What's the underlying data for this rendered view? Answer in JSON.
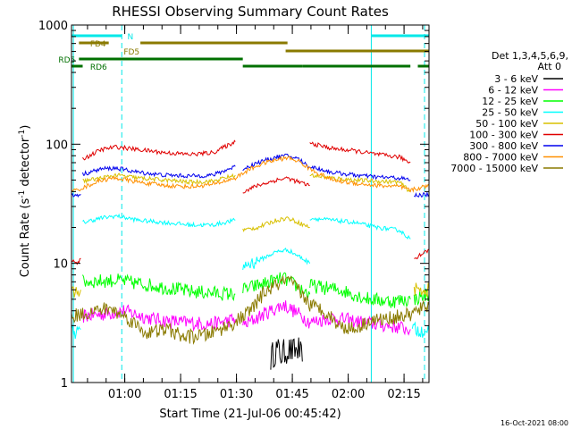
{
  "chart_data": {
    "type": "line",
    "title": "RHESSI Observing Summary Count Rates",
    "xlabel": "Start Time (21-Jul-06 00:45:42)",
    "ylabel_main": "Count Rate (s",
    "ylabel_sup1": "-1",
    "ylabel_mid": " detector",
    "ylabel_sup2": "-1",
    "ylabel_end": ")",
    "y_scale": "log",
    "ylim": [
      1,
      1000
    ],
    "xlim_minutes": [
      0,
      96
    ],
    "x_ticks": [
      {
        "label": "01:00",
        "t": 14.3
      },
      {
        "label": "01:15",
        "t": 29.3
      },
      {
        "label": "01:30",
        "t": 44.3
      },
      {
        "label": "01:45",
        "t": 59.3
      },
      {
        "label": "02:00",
        "t": 74.3
      },
      {
        "label": "02:15",
        "t": 89.3
      }
    ],
    "y_ticks": [
      {
        "label": "1",
        "v": 1
      },
      {
        "label": "10",
        "v": 10
      },
      {
        "label": "100",
        "v": 100
      },
      {
        "label": "1000",
        "v": 1000
      }
    ],
    "legend_header": [
      "Det 1,3,4,5,6,9,",
      "Att 0"
    ],
    "legend_position": "top-right",
    "footer_date": "16-Oct-2021 08:00",
    "vlines_solid": [
      0.5,
      80.5
    ],
    "vlines_dashed": [
      13.5,
      94.8
    ],
    "flags": [
      {
        "name": "N",
        "color": "#00e8e8",
        "row": 0,
        "segments": [
          [
            0,
            13.5
          ],
          [
            80.5,
            96
          ]
        ]
      },
      {
        "name": "FD4",
        "color": "#8a7a00",
        "row": 1,
        "segments": [
          [
            2,
            10
          ],
          [
            18.5,
            58
          ]
        ]
      },
      {
        "name": "FD5",
        "color": "#8a7a00",
        "row": 2,
        "segments": [
          [
            57.5,
            96
          ]
        ]
      },
      {
        "name": "RD5",
        "color": "#007000",
        "row": 3,
        "segments": [
          [
            2,
            46
          ]
        ]
      },
      {
        "name": "RD6",
        "color": "#007000",
        "row": 4,
        "segments": [
          [
            0,
            3
          ],
          [
            46,
            62
          ],
          [
            62,
            91
          ],
          [
            93,
            96
          ]
        ]
      }
    ],
    "flag_labels": [
      {
        "text": "N",
        "color": "#00e8e8",
        "t": 15,
        "row": 0
      },
      {
        "text": "FD4",
        "color": "#8a7a00",
        "t": 5,
        "row": 1
      },
      {
        "text": "FD5",
        "color": "#8a7a00",
        "t": 14,
        "row": 2
      },
      {
        "text": "RD5",
        "color": "#007000",
        "t": -3.5,
        "row": 3
      },
      {
        "text": "RD6",
        "color": "#007000",
        "t": 5,
        "row": 4
      }
    ],
    "series": [
      {
        "name": "3 - 6 keV",
        "color": "#000000",
        "segments": [
          [
            [
              53.5,
              1.6
            ],
            [
              55,
              1.9
            ],
            [
              56.5,
              1.7
            ],
            [
              58,
              1.9
            ],
            [
              59.5,
              1.8
            ],
            [
              61,
              1.9
            ],
            [
              62,
              1.5
            ]
          ]
        ]
      },
      {
        "name": "6 - 12 keV",
        "color": "#ff00ff",
        "segments": [
          [
            [
              3,
              3.6
            ],
            [
              10,
              3.8
            ],
            [
              14,
              4.0
            ],
            [
              22,
              3.4
            ],
            [
              30,
              3.2
            ],
            [
              38,
              3.1
            ],
            [
              44,
              3.4
            ]
          ],
          [
            [
              46,
              3.0
            ],
            [
              52,
              3.8
            ],
            [
              57,
              4.5
            ],
            [
              62,
              3.6
            ],
            [
              64,
              3.2
            ]
          ],
          [
            [
              64,
              3.2
            ],
            [
              70,
              3.5
            ],
            [
              78,
              3.2
            ],
            [
              85,
              3.0
            ],
            [
              91,
              2.8
            ]
          ]
        ]
      },
      {
        "name": "12 - 25 keV",
        "color": "#00ff00",
        "segments": [
          [
            [
              3,
              7.0
            ],
            [
              12,
              7.2
            ],
            [
              22,
              6.5
            ],
            [
              32,
              5.8
            ],
            [
              44,
              5.5
            ]
          ],
          [
            [
              46,
              6.0
            ],
            [
              52,
              6.8
            ],
            [
              57,
              7.5
            ],
            [
              62,
              6.0
            ],
            [
              64,
              5.5
            ]
          ],
          [
            [
              64,
              6.5
            ],
            [
              72,
              6.0
            ],
            [
              80,
              5.0
            ],
            [
              86,
              4.8
            ],
            [
              91,
              5.0
            ]
          ],
          [
            [
              92,
              5.0
            ],
            [
              96,
              5.5
            ]
          ]
        ]
      },
      {
        "name": "25 - 50 keV",
        "color": "#00ffff",
        "segments": [
          [
            [
              0,
              2.8
            ],
            [
              1.5,
              2.6
            ],
            [
              2.5,
              2.8
            ]
          ],
          [
            [
              3,
              22
            ],
            [
              8,
              24
            ],
            [
              12,
              25
            ],
            [
              18,
              23
            ],
            [
              25,
              22
            ],
            [
              32,
              21
            ],
            [
              38,
              21
            ],
            [
              44,
              23
            ]
          ],
          [
            [
              46,
              9.5
            ],
            [
              50,
              10.5
            ],
            [
              55,
              12.5
            ],
            [
              58,
              13
            ],
            [
              61,
              11.5
            ],
            [
              64,
              10
            ]
          ],
          [
            [
              64,
              24
            ],
            [
              70,
              23
            ],
            [
              76,
              22
            ],
            [
              82,
              20
            ],
            [
              88,
              19
            ],
            [
              91,
              16
            ]
          ],
          [
            [
              91.5,
              2.8
            ],
            [
              96,
              2.7
            ]
          ]
        ]
      },
      {
        "name": "50 - 100 keV",
        "color": "#d8c000",
        "segments": [
          [
            [
              0,
              5.5
            ],
            [
              2.5,
              6.0
            ]
          ],
          [
            [
              3,
              49
            ],
            [
              8,
              52
            ],
            [
              12,
              55
            ],
            [
              18,
              52
            ],
            [
              25,
              50
            ],
            [
              32,
              48
            ],
            [
              38,
              49
            ],
            [
              44,
              55
            ]
          ],
          [
            [
              46,
              19
            ],
            [
              50,
              20
            ],
            [
              55,
              23
            ],
            [
              58,
              24
            ],
            [
              61,
              22
            ],
            [
              64,
              20
            ]
          ],
          [
            [
              64,
              55
            ],
            [
              70,
              52
            ],
            [
              76,
              50
            ],
            [
              82,
              49
            ],
            [
              88,
              48
            ],
            [
              91,
              40
            ]
          ],
          [
            [
              92,
              6.0
            ],
            [
              96,
              6.0
            ]
          ]
        ]
      },
      {
        "name": "100 - 300 keV",
        "color": "#e00000",
        "segments": [
          [
            [
              0,
              10.5
            ],
            [
              2,
              10
            ],
            [
              2.5,
              11
            ]
          ],
          [
            [
              3,
              75
            ],
            [
              8,
              90
            ],
            [
              12,
              95
            ],
            [
              18,
              90
            ],
            [
              25,
              85
            ],
            [
              32,
              82
            ],
            [
              38,
              85
            ],
            [
              44,
              105
            ]
          ],
          [
            [
              46,
              40
            ],
            [
              50,
              45
            ],
            [
              55,
              50
            ],
            [
              58,
              52
            ],
            [
              61,
              48
            ],
            [
              64,
              45
            ]
          ],
          [
            [
              64,
              102
            ],
            [
              70,
              92
            ],
            [
              76,
              88
            ],
            [
              82,
              82
            ],
            [
              88,
              78
            ],
            [
              91,
              70
            ]
          ],
          [
            [
              92,
              11
            ],
            [
              95,
              12.5
            ],
            [
              96,
              13
            ]
          ]
        ]
      },
      {
        "name": "300 - 800 keV",
        "color": "#0000ee",
        "segments": [
          [
            [
              0,
              37
            ],
            [
              2.5,
              38
            ]
          ],
          [
            [
              3,
              56
            ],
            [
              8,
              62
            ],
            [
              12,
              63
            ],
            [
              18,
              58
            ],
            [
              25,
              55
            ],
            [
              32,
              54
            ],
            [
              38,
              55
            ],
            [
              44,
              65
            ]
          ],
          [
            [
              46,
              62
            ],
            [
              50,
              70
            ],
            [
              55,
              78
            ],
            [
              58,
              80
            ],
            [
              61,
              75
            ],
            [
              64,
              64
            ]
          ],
          [
            [
              64,
              65
            ],
            [
              70,
              58
            ],
            [
              76,
              55
            ],
            [
              82,
              53
            ],
            [
              88,
              52
            ],
            [
              91,
              50
            ]
          ],
          [
            [
              92,
              37
            ],
            [
              96,
              38
            ]
          ]
        ]
      },
      {
        "name": "800 - 7000 keV",
        "color": "#ff9000",
        "segments": [
          [
            [
              0,
              40
            ],
            [
              3,
              43
            ],
            [
              8,
              50
            ],
            [
              12,
              52
            ],
            [
              18,
              48
            ],
            [
              25,
              45
            ],
            [
              32,
              44
            ],
            [
              38,
              46
            ],
            [
              44,
              52
            ],
            [
              48,
              62
            ],
            [
              52,
              70
            ],
            [
              56,
              75
            ],
            [
              58,
              77
            ],
            [
              61,
              72
            ],
            [
              64,
              62
            ],
            [
              70,
              50
            ],
            [
              76,
              47
            ],
            [
              82,
              45
            ],
            [
              88,
              44
            ],
            [
              91,
              41
            ],
            [
              96,
              45
            ]
          ]
        ]
      },
      {
        "name": "7000 - 15000 keV",
        "color": "#8a7a00",
        "segments": [
          [
            [
              0,
              3.6
            ],
            [
              5,
              3.9
            ],
            [
              10,
              4.2
            ],
            [
              15,
              3.5
            ],
            [
              20,
              2.6
            ],
            [
              26,
              2.8
            ],
            [
              30,
              2.4
            ],
            [
              36,
              2.5
            ],
            [
              40,
              2.8
            ],
            [
              44,
              3.2
            ],
            [
              48,
              4.0
            ],
            [
              52,
              5.8
            ],
            [
              56,
              6.8
            ],
            [
              58,
              7.2
            ],
            [
              61,
              6.0
            ],
            [
              64,
              4.5
            ],
            [
              68,
              4.0
            ],
            [
              72,
              3.0
            ],
            [
              76,
              2.8
            ],
            [
              80,
              3.3
            ],
            [
              84,
              3.4
            ],
            [
              88,
              3.6
            ],
            [
              91,
              3.7
            ],
            [
              96,
              4.5
            ]
          ]
        ]
      }
    ]
  }
}
